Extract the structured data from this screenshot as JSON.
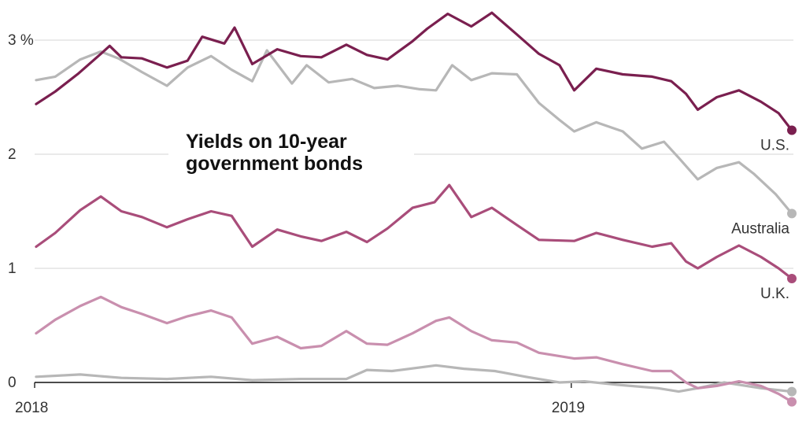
{
  "chart_data": {
    "type": "line",
    "title": "Yields on 10-year government bonds",
    "title_lines": [
      "Yields on 10-year",
      "government bonds"
    ],
    "x_start": "2018-01-01",
    "x_end": "2019-05-31",
    "ylim": [
      -0.2,
      3.3
    ],
    "xlabel": "",
    "ylabel": "",
    "grid": true,
    "y_ticks": [
      {
        "value": 0,
        "label": "0"
      },
      {
        "value": 1,
        "label": "1"
      },
      {
        "value": 2,
        "label": "2"
      },
      {
        "value": 3,
        "label": "3 %"
      }
    ],
    "x_ticks": [
      {
        "date": "2018-01-01",
        "label": "2018"
      },
      {
        "date": "2019-01-01",
        "label": "2019"
      }
    ],
    "series": [
      {
        "name": "U.S.",
        "color": "#7a1f4f",
        "points": [
          [
            "2018-01-02",
            2.44
          ],
          [
            "2018-01-15",
            2.55
          ],
          [
            "2018-01-31",
            2.71
          ],
          [
            "2018-02-15",
            2.88
          ],
          [
            "2018-02-21",
            2.95
          ],
          [
            "2018-03-01",
            2.85
          ],
          [
            "2018-03-15",
            2.84
          ],
          [
            "2018-04-01",
            2.76
          ],
          [
            "2018-04-15",
            2.82
          ],
          [
            "2018-04-25",
            3.03
          ],
          [
            "2018-05-10",
            2.97
          ],
          [
            "2018-05-17",
            3.11
          ],
          [
            "2018-05-29",
            2.79
          ],
          [
            "2018-06-15",
            2.92
          ],
          [
            "2018-07-01",
            2.86
          ],
          [
            "2018-07-15",
            2.85
          ],
          [
            "2018-08-01",
            2.96
          ],
          [
            "2018-08-15",
            2.87
          ],
          [
            "2018-08-29",
            2.83
          ],
          [
            "2018-09-15",
            2.99
          ],
          [
            "2018-09-25",
            3.1
          ],
          [
            "2018-10-09",
            3.23
          ],
          [
            "2018-10-25",
            3.12
          ],
          [
            "2018-11-08",
            3.24
          ],
          [
            "2018-11-25",
            3.05
          ],
          [
            "2018-12-10",
            2.88
          ],
          [
            "2018-12-24",
            2.78
          ],
          [
            "2019-01-03",
            2.56
          ],
          [
            "2019-01-18",
            2.75
          ],
          [
            "2019-02-05",
            2.7
          ],
          [
            "2019-02-25",
            2.68
          ],
          [
            "2019-03-10",
            2.64
          ],
          [
            "2019-03-20",
            2.53
          ],
          [
            "2019-03-28",
            2.39
          ],
          [
            "2019-04-10",
            2.5
          ],
          [
            "2019-04-25",
            2.56
          ],
          [
            "2019-05-10",
            2.46
          ],
          [
            "2019-05-22",
            2.36
          ],
          [
            "2019-05-31",
            2.21
          ]
        ]
      },
      {
        "name": "Australia",
        "color": "#b7b7b7",
        "points": [
          [
            "2018-01-02",
            2.65
          ],
          [
            "2018-01-15",
            2.68
          ],
          [
            "2018-02-01",
            2.83
          ],
          [
            "2018-02-15",
            2.9
          ],
          [
            "2018-02-27",
            2.84
          ],
          [
            "2018-03-15",
            2.72
          ],
          [
            "2018-04-01",
            2.6
          ],
          [
            "2018-04-15",
            2.76
          ],
          [
            "2018-05-01",
            2.86
          ],
          [
            "2018-05-15",
            2.74
          ],
          [
            "2018-05-29",
            2.64
          ],
          [
            "2018-06-08",
            2.91
          ],
          [
            "2018-06-25",
            2.62
          ],
          [
            "2018-07-05",
            2.78
          ],
          [
            "2018-07-20",
            2.63
          ],
          [
            "2018-08-05",
            2.66
          ],
          [
            "2018-08-20",
            2.58
          ],
          [
            "2018-09-05",
            2.6
          ],
          [
            "2018-09-20",
            2.57
          ],
          [
            "2018-10-01",
            2.56
          ],
          [
            "2018-10-12",
            2.78
          ],
          [
            "2018-10-25",
            2.65
          ],
          [
            "2018-11-08",
            2.71
          ],
          [
            "2018-11-25",
            2.7
          ],
          [
            "2018-12-10",
            2.45
          ],
          [
            "2018-12-24",
            2.3
          ],
          [
            "2019-01-03",
            2.2
          ],
          [
            "2019-01-18",
            2.28
          ],
          [
            "2019-02-05",
            2.2
          ],
          [
            "2019-02-18",
            2.05
          ],
          [
            "2019-03-05",
            2.11
          ],
          [
            "2019-03-15",
            1.97
          ],
          [
            "2019-03-28",
            1.78
          ],
          [
            "2019-04-10",
            1.88
          ],
          [
            "2019-04-25",
            1.93
          ],
          [
            "2019-05-05",
            1.83
          ],
          [
            "2019-05-20",
            1.65
          ],
          [
            "2019-05-31",
            1.48
          ]
        ]
      },
      {
        "name": "U.K.",
        "color": "#a94d7a",
        "points": [
          [
            "2018-01-02",
            1.19
          ],
          [
            "2018-01-15",
            1.31
          ],
          [
            "2018-02-01",
            1.51
          ],
          [
            "2018-02-15",
            1.63
          ],
          [
            "2018-03-01",
            1.5
          ],
          [
            "2018-03-15",
            1.45
          ],
          [
            "2018-04-01",
            1.36
          ],
          [
            "2018-04-15",
            1.43
          ],
          [
            "2018-05-01",
            1.5
          ],
          [
            "2018-05-15",
            1.46
          ],
          [
            "2018-05-29",
            1.19
          ],
          [
            "2018-06-15",
            1.34
          ],
          [
            "2018-07-01",
            1.28
          ],
          [
            "2018-07-15",
            1.24
          ],
          [
            "2018-08-01",
            1.32
          ],
          [
            "2018-08-15",
            1.23
          ],
          [
            "2018-08-29",
            1.35
          ],
          [
            "2018-09-15",
            1.53
          ],
          [
            "2018-09-30",
            1.58
          ],
          [
            "2018-10-10",
            1.73
          ],
          [
            "2018-10-25",
            1.45
          ],
          [
            "2018-11-08",
            1.53
          ],
          [
            "2018-11-25",
            1.38
          ],
          [
            "2018-12-10",
            1.25
          ],
          [
            "2019-01-03",
            1.24
          ],
          [
            "2019-01-18",
            1.31
          ],
          [
            "2019-02-05",
            1.25
          ],
          [
            "2019-02-25",
            1.19
          ],
          [
            "2019-03-10",
            1.22
          ],
          [
            "2019-03-20",
            1.06
          ],
          [
            "2019-03-28",
            1.0
          ],
          [
            "2019-04-10",
            1.1
          ],
          [
            "2019-04-25",
            1.2
          ],
          [
            "2019-05-10",
            1.1
          ],
          [
            "2019-05-22",
            1.0
          ],
          [
            "2019-05-31",
            0.91
          ]
        ]
      },
      {
        "name": "",
        "color": "#c98fae",
        "points": [
          [
            "2018-01-02",
            0.43
          ],
          [
            "2018-01-15",
            0.55
          ],
          [
            "2018-02-01",
            0.67
          ],
          [
            "2018-02-15",
            0.75
          ],
          [
            "2018-03-01",
            0.66
          ],
          [
            "2018-03-15",
            0.6
          ],
          [
            "2018-04-01",
            0.52
          ],
          [
            "2018-04-15",
            0.58
          ],
          [
            "2018-05-01",
            0.63
          ],
          [
            "2018-05-15",
            0.57
          ],
          [
            "2018-05-29",
            0.34
          ],
          [
            "2018-06-15",
            0.4
          ],
          [
            "2018-07-01",
            0.3
          ],
          [
            "2018-07-15",
            0.32
          ],
          [
            "2018-08-01",
            0.45
          ],
          [
            "2018-08-15",
            0.34
          ],
          [
            "2018-08-29",
            0.33
          ],
          [
            "2018-09-15",
            0.43
          ],
          [
            "2018-10-01",
            0.54
          ],
          [
            "2018-10-10",
            0.57
          ],
          [
            "2018-10-25",
            0.45
          ],
          [
            "2018-11-08",
            0.37
          ],
          [
            "2018-11-25",
            0.35
          ],
          [
            "2018-12-10",
            0.26
          ],
          [
            "2019-01-03",
            0.21
          ],
          [
            "2019-01-18",
            0.22
          ],
          [
            "2019-02-05",
            0.16
          ],
          [
            "2019-02-25",
            0.1
          ],
          [
            "2019-03-10",
            0.1
          ],
          [
            "2019-03-20",
            0.0
          ],
          [
            "2019-03-28",
            -0.05
          ],
          [
            "2019-04-10",
            -0.03
          ],
          [
            "2019-04-25",
            0.01
          ],
          [
            "2019-05-10",
            -0.03
          ],
          [
            "2019-05-22",
            -0.1
          ],
          [
            "2019-05-31",
            -0.17
          ]
        ]
      },
      {
        "name": "",
        "color": "#b7b7b7",
        "points": [
          [
            "2018-01-02",
            0.05
          ],
          [
            "2018-02-01",
            0.07
          ],
          [
            "2018-03-01",
            0.04
          ],
          [
            "2018-04-01",
            0.03
          ],
          [
            "2018-05-01",
            0.05
          ],
          [
            "2018-05-29",
            0.02
          ],
          [
            "2018-07-01",
            0.03
          ],
          [
            "2018-08-01",
            0.03
          ],
          [
            "2018-08-15",
            0.11
          ],
          [
            "2018-09-01",
            0.1
          ],
          [
            "2018-10-01",
            0.15
          ],
          [
            "2018-10-20",
            0.12
          ],
          [
            "2018-11-10",
            0.1
          ],
          [
            "2018-12-01",
            0.05
          ],
          [
            "2018-12-24",
            0.0
          ],
          [
            "2019-01-10",
            0.01
          ],
          [
            "2019-02-01",
            -0.02
          ],
          [
            "2019-03-01",
            -0.05
          ],
          [
            "2019-03-15",
            -0.08
          ],
          [
            "2019-03-28",
            -0.05
          ],
          [
            "2019-04-15",
            0.0
          ],
          [
            "2019-05-10",
            -0.05
          ],
          [
            "2019-05-31",
            -0.08
          ]
        ]
      }
    ]
  }
}
